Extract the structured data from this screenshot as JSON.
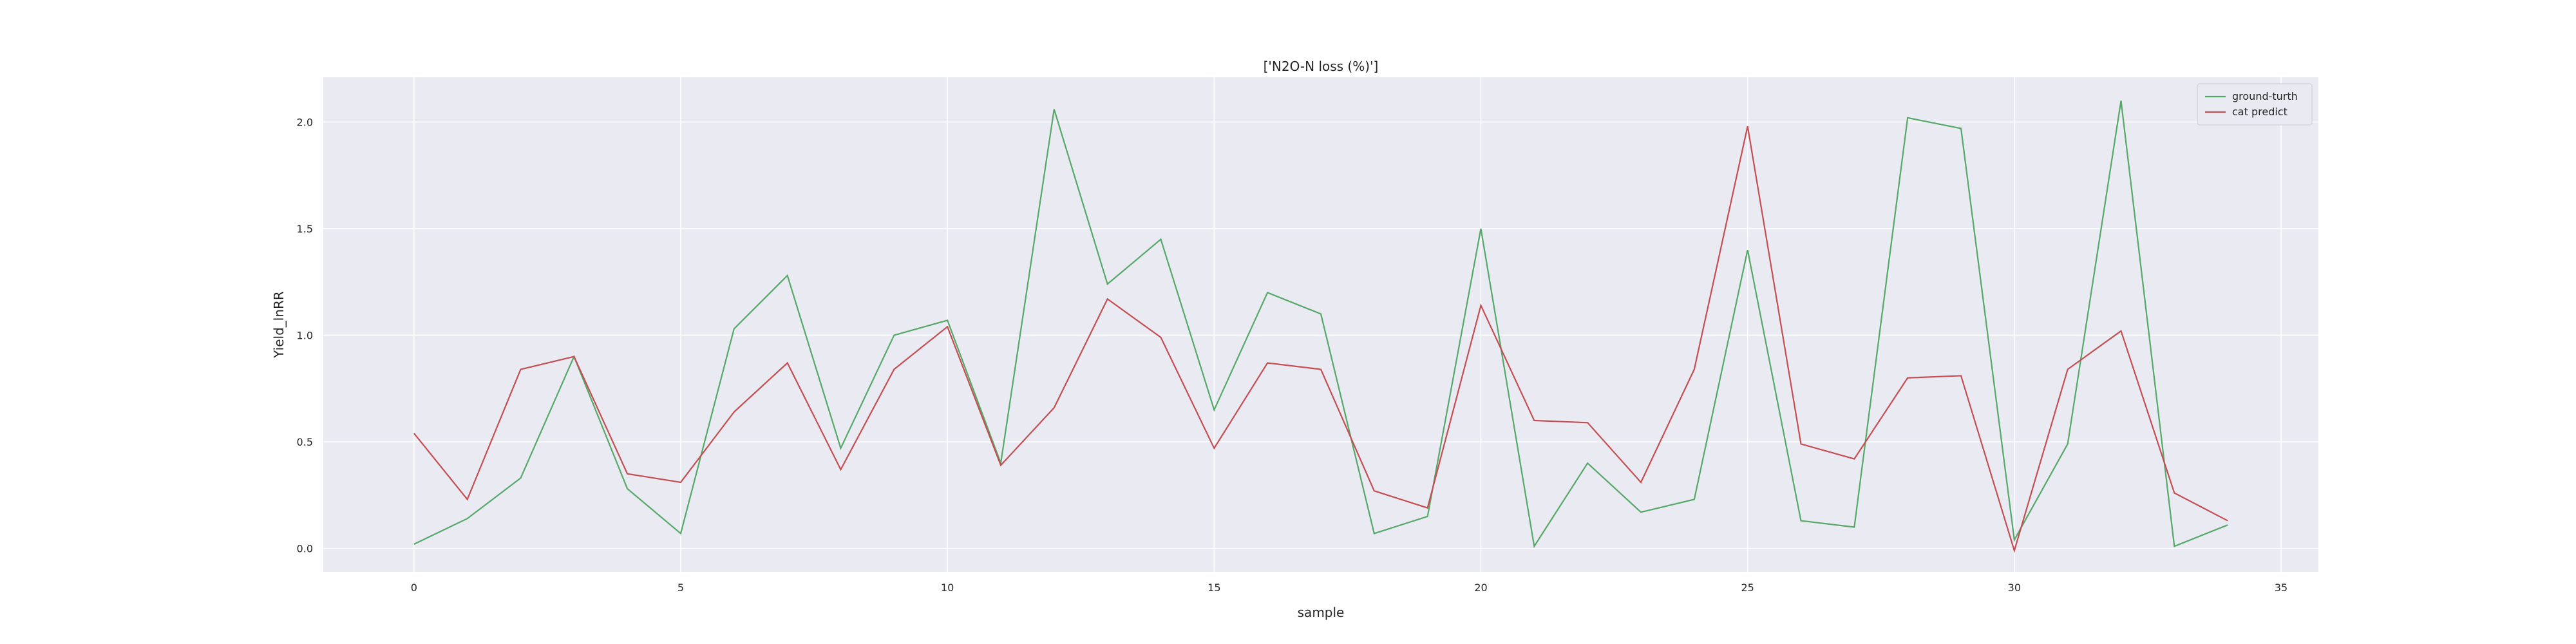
{
  "chart_data": {
    "type": "line",
    "title": "['N2O-N loss (%)']",
    "xlabel": "sample",
    "ylabel": "Yield_lnRR",
    "xlim": [
      -1.7,
      35.7
    ],
    "ylim": [
      -0.11,
      2.21
    ],
    "xticks": [
      0,
      5,
      10,
      15,
      20,
      25,
      30,
      35
    ],
    "yticks": [
      0.0,
      0.5,
      1.0,
      1.5,
      2.0
    ],
    "grid": true,
    "legend_position": "top-right",
    "x": [
      0,
      1,
      2,
      3,
      4,
      5,
      6,
      7,
      8,
      9,
      10,
      11,
      12,
      13,
      14,
      15,
      16,
      17,
      18,
      19,
      20,
      21,
      22,
      23,
      24,
      25,
      26,
      27,
      28,
      29,
      30,
      31,
      32,
      33,
      34
    ],
    "series": [
      {
        "name": "ground-turth",
        "color": "#55a868",
        "values": [
          0.02,
          0.14,
          0.33,
          0.9,
          0.28,
          0.07,
          1.03,
          1.28,
          0.47,
          1.0,
          1.07,
          0.4,
          2.06,
          1.24,
          1.45,
          0.65,
          1.2,
          1.1,
          0.07,
          0.15,
          1.5,
          0.01,
          0.4,
          0.17,
          0.23,
          1.4,
          0.13,
          0.1,
          2.02,
          1.97,
          0.04,
          0.49,
          2.1,
          0.01,
          0.11
        ]
      },
      {
        "name": "cat predict",
        "color": "#c44e52",
        "values": [
          0.54,
          0.23,
          0.84,
          0.9,
          0.35,
          0.31,
          0.64,
          0.87,
          0.37,
          0.84,
          1.04,
          0.39,
          0.66,
          1.17,
          0.99,
          0.47,
          0.87,
          0.84,
          0.27,
          0.19,
          1.14,
          0.6,
          0.59,
          0.31,
          0.84,
          1.98,
          0.49,
          0.42,
          0.8,
          0.81,
          -0.01,
          0.84,
          1.02,
          0.26,
          0.13
        ]
      }
    ],
    "colors": {
      "plot_bg": "#eaeaf2",
      "grid": "#ffffff",
      "text": "#262626"
    }
  }
}
